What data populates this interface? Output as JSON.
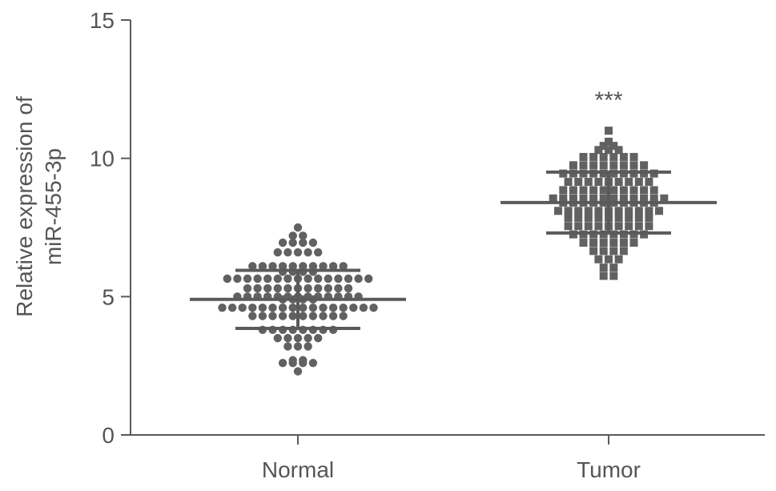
{
  "colors": {
    "axis": "#5a5a5a",
    "text": "#555555",
    "points": "#616161",
    "errorbar": "#5a5a5a"
  },
  "chart_data": {
    "type": "scatter",
    "title": "",
    "ylabel_lines": [
      "Relative expression of",
      "miR-455-3p"
    ],
    "xlabel": "",
    "ylim": [
      0,
      15
    ],
    "yticks": [
      0,
      5,
      10,
      15
    ],
    "categories": [
      "Normal",
      "Tumor"
    ],
    "significance": {
      "category": "Tumor",
      "label": "***"
    },
    "series": [
      {
        "category": "Normal",
        "marker": "circle",
        "mean": 4.9,
        "sd": 1.05,
        "values": [
          7.5,
          7.2,
          7.2,
          6.95,
          6.95,
          6.95,
          6.95,
          6.6,
          6.6,
          6.6,
          6.6,
          6.6,
          6.1,
          6.1,
          6.1,
          6.1,
          6.1,
          6.1,
          6.1,
          6.1,
          6.1,
          6.1,
          5.9,
          5.9,
          5.9,
          5.9,
          5.65,
          5.65,
          5.65,
          5.65,
          5.65,
          5.65,
          5.65,
          5.65,
          5.65,
          5.65,
          5.65,
          5.65,
          5.65,
          5.65,
          5.65,
          5.3,
          5.3,
          5.3,
          5.3,
          5.3,
          5.3,
          5.3,
          5.3,
          5.3,
          5.3,
          5.3,
          5.0,
          5.0,
          5.0,
          5.0,
          5.0,
          5.0,
          5.0,
          5.0,
          5.0,
          5.0,
          5.0,
          5.0,
          5.0,
          4.9,
          4.9,
          4.9,
          4.9,
          4.6,
          4.6,
          4.6,
          4.6,
          4.6,
          4.6,
          4.6,
          4.6,
          4.6,
          4.6,
          4.6,
          4.6,
          4.6,
          4.6,
          4.6,
          4.6,
          4.3,
          4.3,
          4.3,
          4.3,
          4.3,
          4.3,
          4.3,
          4.3,
          4.3,
          4.3,
          3.8,
          3.8,
          3.8,
          3.8,
          3.8,
          3.8,
          3.8,
          3.8,
          3.5,
          3.5,
          3.5,
          3.5,
          3.5,
          3.2,
          3.2,
          3.2,
          2.7,
          2.7,
          2.6,
          2.6,
          2.6,
          2.6,
          2.3
        ]
      },
      {
        "category": "Tumor",
        "marker": "square",
        "mean": 8.4,
        "sd": 1.1,
        "values": [
          11.0,
          10.6,
          10.45,
          10.45,
          10.3,
          10.3,
          10.3,
          10.05,
          10.05,
          10.05,
          10.05,
          10.05,
          10.05,
          9.75,
          9.75,
          9.75,
          9.75,
          9.75,
          9.75,
          9.75,
          9.75,
          9.45,
          9.45,
          9.45,
          9.45,
          9.45,
          9.45,
          9.45,
          9.45,
          9.45,
          9.45,
          9.15,
          9.15,
          9.15,
          9.15,
          9.15,
          9.15,
          9.15,
          9.15,
          9.15,
          8.85,
          8.85,
          8.85,
          8.85,
          8.85,
          8.85,
          8.85,
          8.85,
          8.85,
          8.85,
          8.55,
          8.55,
          8.55,
          8.55,
          8.55,
          8.55,
          8.55,
          8.55,
          8.55,
          8.55,
          8.55,
          8.55,
          8.4,
          8.4,
          8.4,
          8.4,
          8.4,
          8.4,
          8.4,
          8.4,
          8.4,
          8.4,
          8.1,
          8.1,
          8.1,
          8.1,
          8.1,
          8.1,
          8.1,
          8.1,
          8.1,
          8.1,
          8.1,
          7.85,
          7.85,
          7.85,
          7.85,
          7.85,
          7.85,
          7.85,
          7.85,
          7.85,
          7.55,
          7.55,
          7.55,
          7.55,
          7.55,
          7.55,
          7.55,
          7.55,
          7.55,
          7.25,
          7.25,
          7.25,
          7.25,
          7.25,
          7.25,
          7.25,
          7.25,
          6.95,
          6.95,
          6.95,
          6.95,
          6.95,
          6.95,
          6.65,
          6.65,
          6.65,
          6.65,
          6.35,
          6.35,
          6.35,
          6.05,
          6.05,
          5.75,
          5.75
        ]
      }
    ]
  }
}
